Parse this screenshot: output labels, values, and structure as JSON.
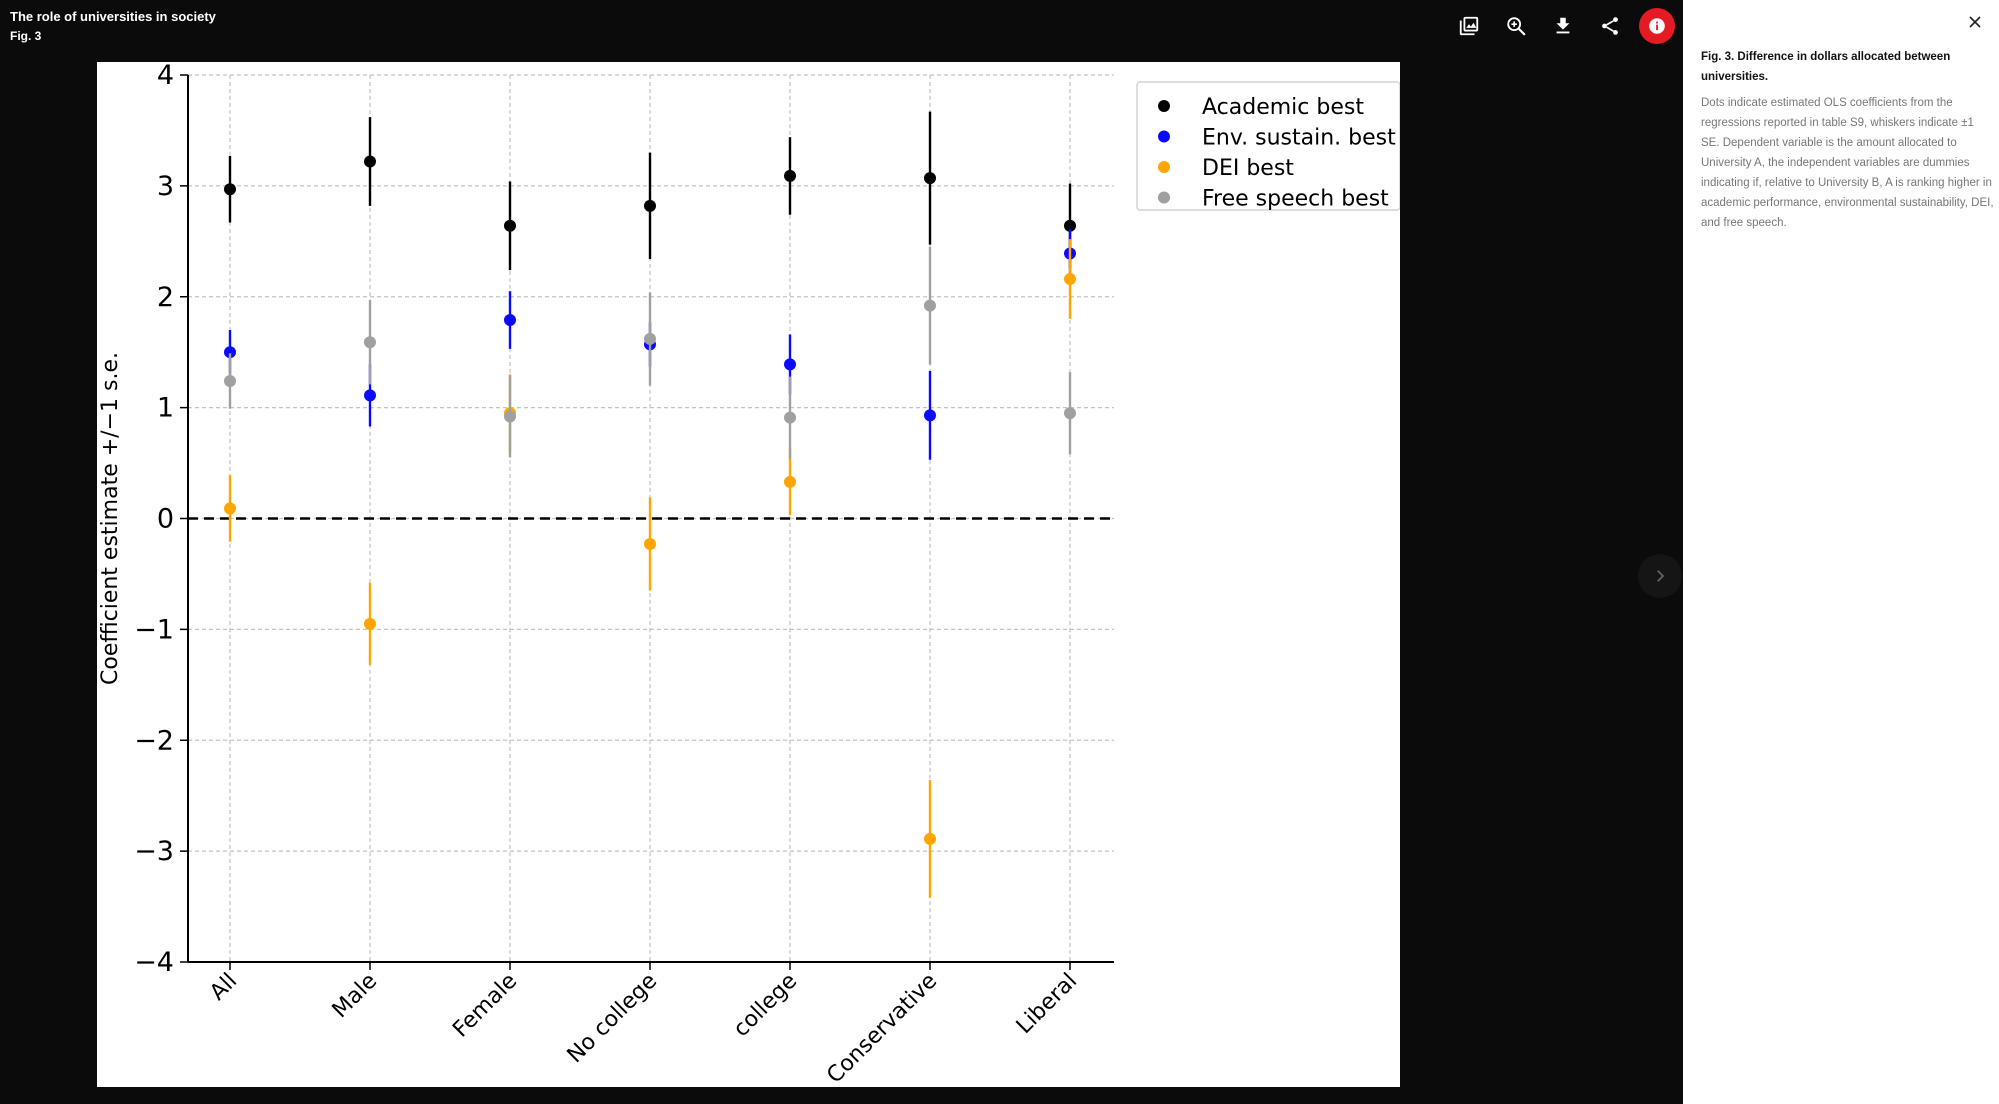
{
  "header": {
    "title": "The role of universities in society",
    "figure_label": "Fig. 3"
  },
  "toolbar": {
    "buttons": [
      {
        "name": "image-icon"
      },
      {
        "name": "zoom-in-icon"
      },
      {
        "name": "download-icon"
      },
      {
        "name": "share-icon"
      },
      {
        "name": "info-icon"
      }
    ],
    "accent_color": "#e51b24"
  },
  "caption": {
    "title": "Fig. 3. Difference in dollars allocated between universities.",
    "body": "Dots indicate estimated OLS coefficients from the regressions reported in table S9, whiskers indicate ±1 SE. Dependent variable is the amount allocated to University A, the independent variables are dummies indicating if, relative to University B, A is ranking higher in academic performance, environmental sustainability, DEI, and free speech."
  },
  "chart_data": {
    "type": "scatter",
    "title": "",
    "xlabel": "",
    "ylabel": "Coefficient estimate +/−1 s.e.",
    "ylim": [
      -4,
      4
    ],
    "yticks": [
      -4,
      -3,
      -2,
      -1,
      0,
      1,
      2,
      3,
      4
    ],
    "ytick_labels": [
      "−4",
      "−3",
      "−2",
      "−1",
      "0",
      "1",
      "2",
      "3",
      "4"
    ],
    "grid": true,
    "zero_line": 0,
    "legend_position": "top-right",
    "categories": [
      "All",
      "Male",
      "Female",
      "No college",
      "college",
      "Conservative",
      "Liberal"
    ],
    "series": [
      {
        "name": "Academic best",
        "color": "#000000",
        "values": [
          2.97,
          3.22,
          2.64,
          2.82,
          3.09,
          3.07,
          2.64
        ],
        "se": [
          0.3,
          0.4,
          0.4,
          0.48,
          0.35,
          0.6,
          0.38
        ]
      },
      {
        "name": "Env. sustain. best",
        "color": "#0a0aff",
        "values": [
          1.5,
          1.11,
          1.79,
          1.57,
          1.39,
          0.93,
          2.39
        ],
        "se": [
          0.2,
          0.28,
          0.26,
          0.2,
          0.27,
          0.4,
          0.22
        ]
      },
      {
        "name": "DEI best",
        "color": "#ffa500",
        "values": [
          0.09,
          -0.95,
          0.95,
          -0.23,
          0.33,
          -2.89,
          2.16
        ],
        "se": [
          0.3,
          0.37,
          0.35,
          0.42,
          0.3,
          0.53,
          0.36
        ]
      },
      {
        "name": "Free speech best",
        "color": "#a0a0a0",
        "values": [
          1.24,
          1.59,
          0.92,
          1.62,
          0.91,
          1.92,
          0.95
        ],
        "se": [
          0.25,
          0.38,
          0.37,
          0.42,
          0.37,
          0.53,
          0.37
        ]
      }
    ]
  }
}
